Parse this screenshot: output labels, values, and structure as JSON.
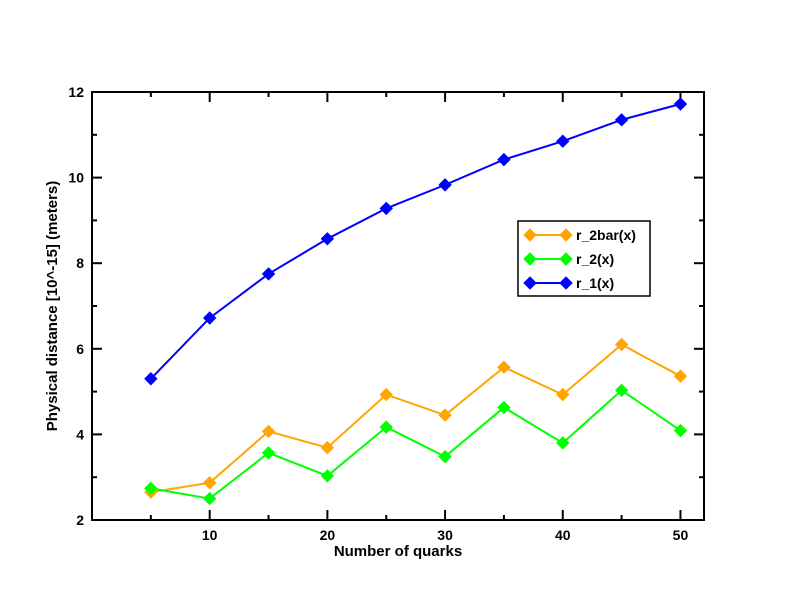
{
  "chart_data": {
    "type": "line",
    "title": "",
    "xlabel": "Number of quarks",
    "ylabel": "Physical distance [10^-15] (meters)",
    "xlim": [
      0,
      52
    ],
    "ylim": [
      2,
      12
    ],
    "xticks": [
      10,
      20,
      30,
      40,
      50
    ],
    "yticks": [
      2,
      4,
      6,
      8,
      10,
      12
    ],
    "grid": false,
    "legend_position": "right-middle",
    "x": [
      5,
      10,
      15,
      20,
      25,
      30,
      35,
      40,
      45,
      50
    ],
    "series": [
      {
        "name": "r_2bar(x)",
        "color": "#FFA500",
        "marker": "diamond",
        "values": [
          2.65,
          2.87,
          4.07,
          3.69,
          4.93,
          4.45,
          5.57,
          4.93,
          6.1,
          5.36
        ]
      },
      {
        "name": "r_2(x)",
        "color": "#00FF00",
        "marker": "diamond",
        "values": [
          2.74,
          2.5,
          3.57,
          3.03,
          4.17,
          3.48,
          4.63,
          3.8,
          5.03,
          4.09
        ]
      },
      {
        "name": "r_1(x)",
        "color": "#0000FF",
        "marker": "diamond",
        "values": [
          5.3,
          6.72,
          7.75,
          8.57,
          9.28,
          9.83,
          10.42,
          10.85,
          11.35,
          11.72
        ]
      }
    ]
  }
}
